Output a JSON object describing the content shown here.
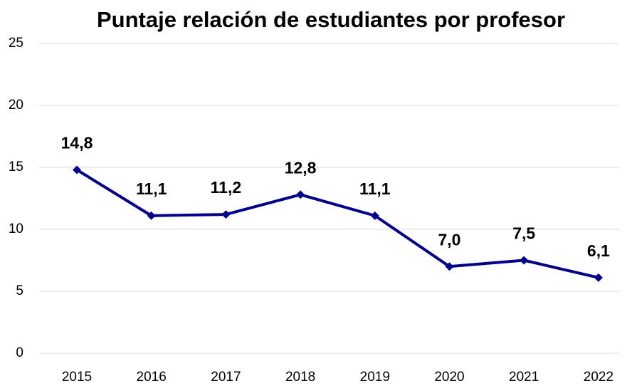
{
  "chart_data": {
    "type": "line",
    "title": "Puntaje relación de estudiantes por profesor",
    "categories": [
      "2015",
      "2016",
      "2017",
      "2018",
      "2019",
      "2020",
      "2021",
      "2022"
    ],
    "series": [
      {
        "name": "Puntaje",
        "color": "#00008b",
        "values": [
          14.8,
          11.1,
          11.2,
          12.8,
          11.1,
          7.0,
          7.5,
          6.1
        ],
        "value_labels": [
          "14,8",
          "11,1",
          "11,2",
          "12,8",
          "11,1",
          "7,0",
          "7,5",
          "6,1"
        ]
      }
    ],
    "ylim": [
      0,
      25
    ],
    "yticks": [
      0,
      5,
      10,
      15,
      20,
      25
    ],
    "grid": true
  }
}
